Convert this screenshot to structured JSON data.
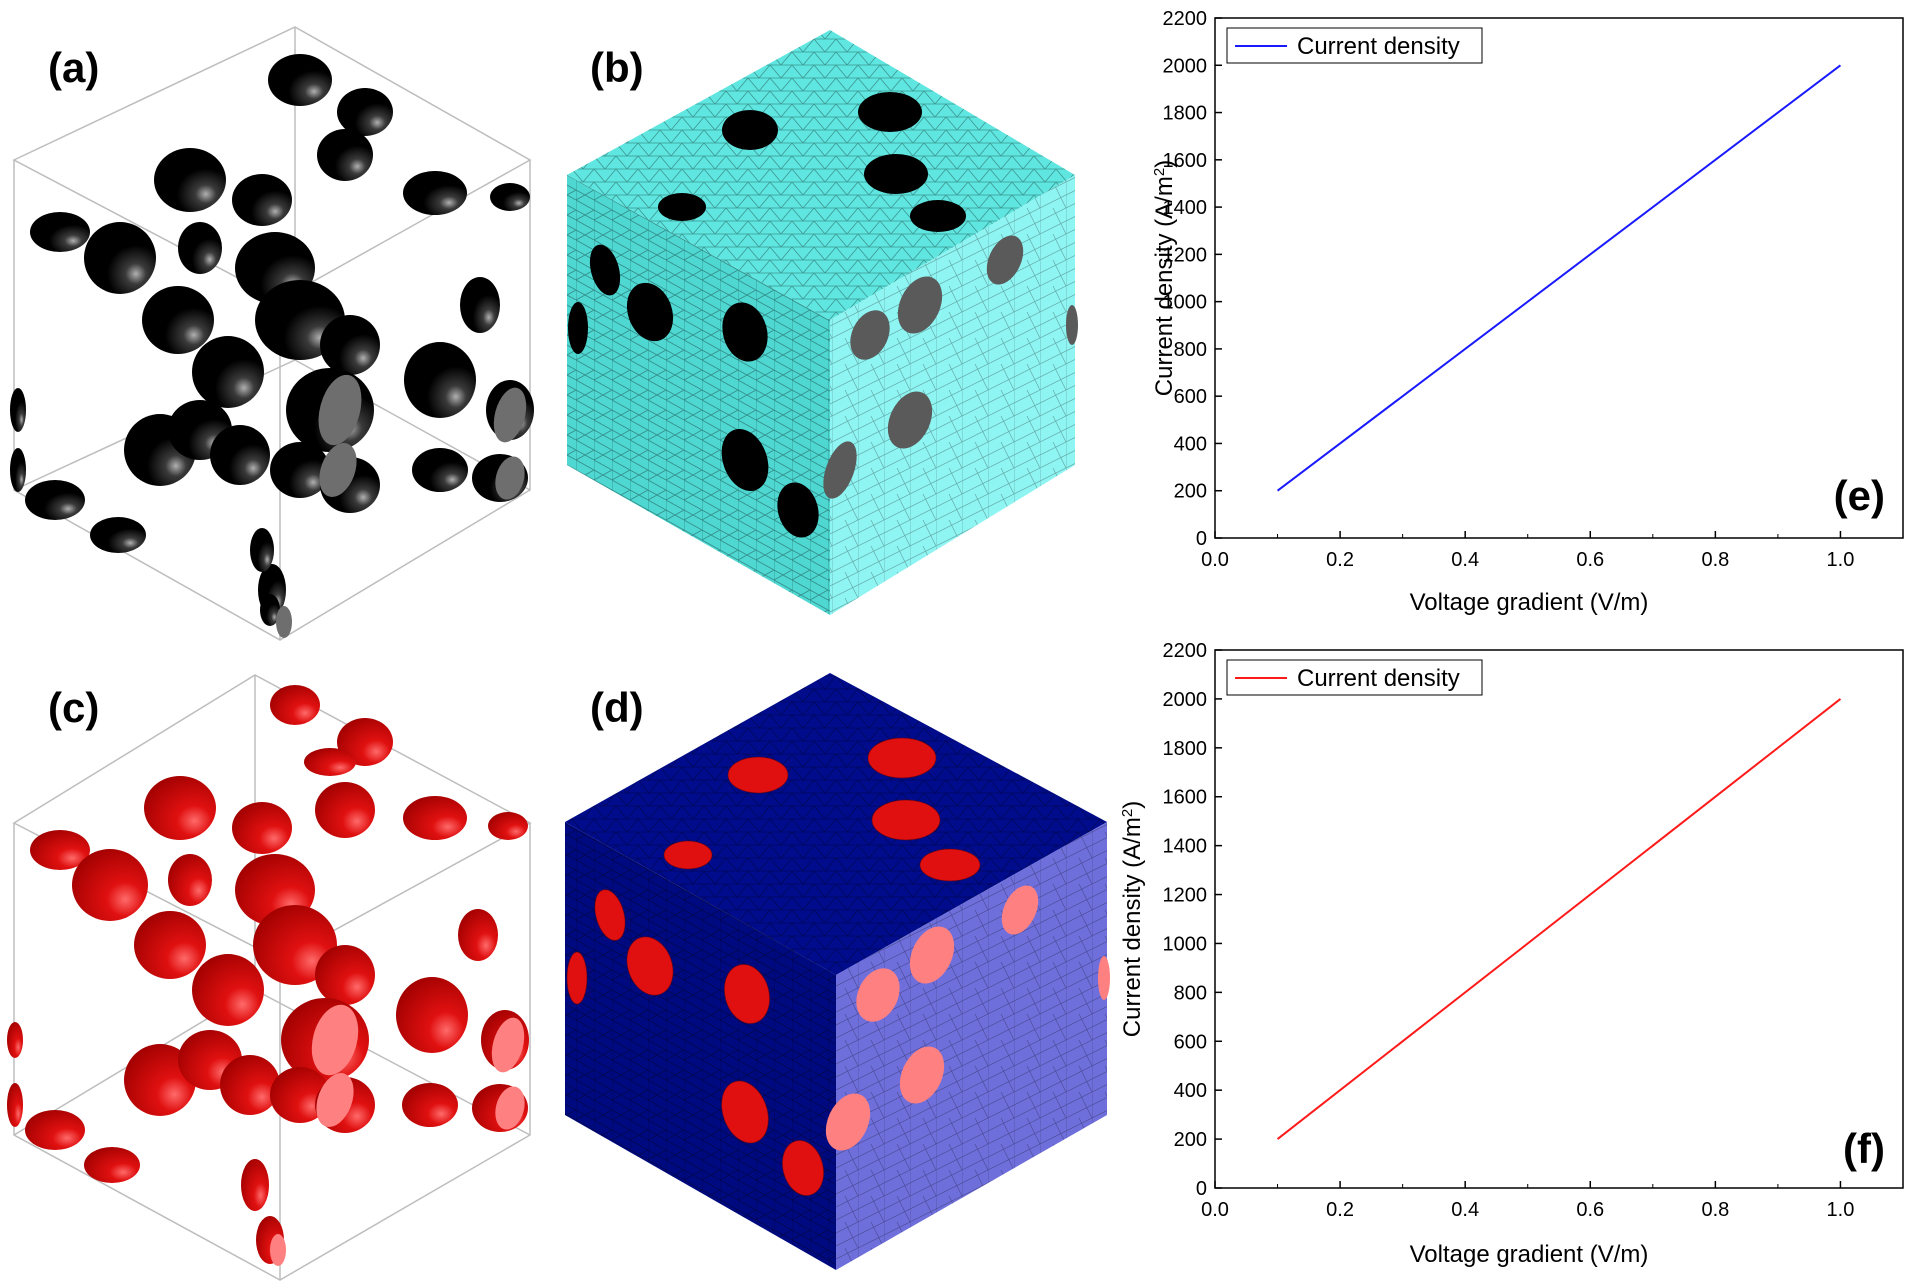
{
  "panels": {
    "a": {
      "label": "(a)"
    },
    "b": {
      "label": "(b)"
    },
    "c": {
      "label": "(c)"
    },
    "d": {
      "label": "(d)"
    }
  },
  "colors": {
    "black_particles": "#000000",
    "particle_cut_face": "#6e6e6e",
    "red_particles": "#e01010",
    "red_cut_face": "#ff8080",
    "cyan_mesh": "#5fe6e0",
    "cyan_mesh_side": "#8ff5f2",
    "blue_mesh": "#000c8c",
    "blue_mesh_side": "#6f6fdc"
  },
  "chart_data": [
    {
      "panel": "(e)",
      "type": "line",
      "xlabel": "Voltage gradient (V/m)",
      "ylabel": "Current density (A/m",
      "ylabel_sup": "2",
      "ylabel_end": ")",
      "xlim": [
        0.0,
        1.1
      ],
      "ylim": [
        0,
        2200
      ],
      "xticks": [
        "0.0",
        "0.2",
        "0.4",
        "0.6",
        "0.8",
        "1.0"
      ],
      "yticks": [
        "0",
        "200",
        "400",
        "600",
        "800",
        "1000",
        "1200",
        "1400",
        "1600",
        "1800",
        "2000",
        "2200"
      ],
      "legend_position": "top-left",
      "series": [
        {
          "name": "Current density",
          "color": "#1a1aff",
          "x": [
            0.1,
            1.0
          ],
          "y": [
            200,
            2000
          ]
        }
      ]
    },
    {
      "panel": "(f)",
      "type": "line",
      "xlabel": "Voltage gradient (V/m)",
      "ylabel": "Current density (A/m",
      "ylabel_sup": "2",
      "ylabel_end": ")",
      "xlim": [
        0.0,
        1.1
      ],
      "ylim": [
        0,
        2200
      ],
      "xticks": [
        "0.0",
        "0.2",
        "0.4",
        "0.6",
        "0.8",
        "1.0"
      ],
      "yticks": [
        "0",
        "200",
        "400",
        "600",
        "800",
        "1000",
        "1200",
        "1400",
        "1600",
        "1800",
        "2000",
        "2200"
      ],
      "legend_position": "top-left",
      "series": [
        {
          "name": "Current density",
          "color": "#ff1a1a",
          "x": [
            0.1,
            1.0
          ],
          "y": [
            200,
            2000
          ]
        }
      ]
    }
  ]
}
